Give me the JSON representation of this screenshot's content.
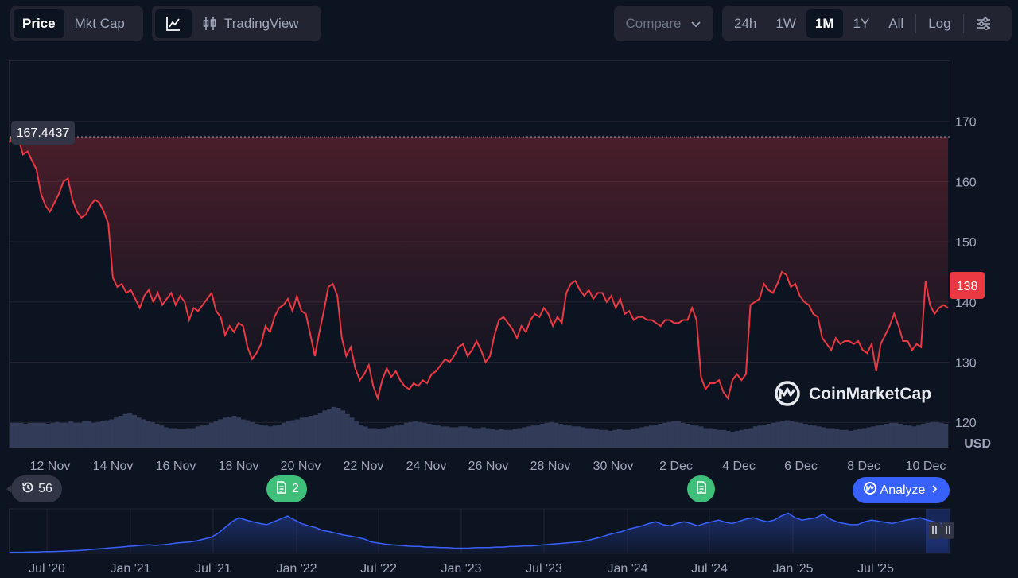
{
  "toolbar": {
    "type_tabs": [
      {
        "label": "Price",
        "active": true
      },
      {
        "label": "Mkt Cap",
        "active": false
      }
    ],
    "style_tabs": [
      {
        "icon": "line-chart-icon",
        "active": true
      },
      {
        "label": "TradingView",
        "icon": "candlestick-icon",
        "active": false
      }
    ],
    "compare_label": "Compare",
    "range_tabs": [
      {
        "label": "24h",
        "active": false
      },
      {
        "label": "1W",
        "active": false
      },
      {
        "label": "1M",
        "active": true
      },
      {
        "label": "1Y",
        "active": false
      },
      {
        "label": "All",
        "active": false
      }
    ],
    "log_label": "Log",
    "settings_icon": "sliders-icon"
  },
  "colors": {
    "background": "#0d1421",
    "line_down": "#ea3943",
    "line_up": "#16c784",
    "volume": "#323b57",
    "navigator_line": "#3861fb",
    "accent": "#3861fb",
    "news": "#3ec07b"
  },
  "chart_data": {
    "type": "line",
    "currency_label": "USD",
    "y_ticks": [
      120,
      130,
      140,
      150,
      160,
      170
    ],
    "ylim": [
      115.8,
      180
    ],
    "x_ticks": [
      "12 Nov",
      "14 Nov",
      "16 Nov",
      "18 Nov",
      "20 Nov",
      "22 Nov",
      "24 Nov",
      "26 Nov",
      "28 Nov",
      "30 Nov",
      "2 Dec",
      "4 Dec",
      "6 Dec",
      "8 Dec",
      "10 Dec"
    ],
    "start_reference_price": "167.4437",
    "current_price": "138",
    "series": [
      {
        "values": [
          166.5,
          168.5,
          167,
          164.5,
          165,
          163.5,
          162,
          158,
          156,
          155,
          156.5,
          158,
          160,
          160.5,
          157,
          155,
          154,
          154.5,
          156,
          157,
          156.5,
          155,
          153,
          144,
          142.5,
          143,
          141.5,
          142,
          140.5,
          139,
          141,
          142,
          140,
          141.5,
          139.5,
          140.5,
          141.5,
          139.5,
          141,
          140,
          137,
          139,
          138.5,
          139.5,
          140.5,
          141.5,
          138.5,
          137.5,
          134.5,
          136,
          135,
          136.5,
          136,
          132.5,
          130.5,
          131.5,
          133,
          136,
          135,
          137.5,
          139,
          139.5,
          140.5,
          138.5,
          141,
          138.5,
          138,
          134.5,
          131,
          135,
          138.5,
          142.5,
          143,
          141,
          134,
          131,
          132.5,
          129,
          127,
          128,
          129.5,
          126,
          124,
          127,
          129,
          127.5,
          128.5,
          127,
          126,
          125.5,
          126.5,
          126,
          127,
          126.5,
          128,
          128.5,
          129.5,
          130.5,
          130,
          131,
          132.5,
          133,
          131,
          132,
          133.5,
          132,
          130,
          131,
          134.5,
          137,
          137.5,
          136.5,
          135.5,
          134,
          136,
          135,
          137,
          138,
          137.5,
          139,
          138,
          136,
          137.5,
          136.5,
          141.5,
          143,
          143.5,
          142,
          141,
          142,
          140.5,
          141.5,
          141.5,
          140,
          141,
          139,
          140.5,
          138,
          138.5,
          137,
          137.5,
          137.5,
          137,
          137,
          136.5,
          136,
          137,
          137,
          136.5,
          136.5,
          137,
          137,
          139,
          137,
          127.5,
          125.5,
          126.5,
          126.5,
          127,
          125,
          124,
          127,
          128,
          127,
          128,
          139.5,
          140,
          140.5,
          143,
          142,
          141.5,
          143,
          145,
          144.5,
          142.5,
          143,
          141,
          140,
          139.5,
          138,
          137.5,
          134,
          133,
          132,
          134,
          133,
          133.5,
          133.5,
          133,
          133.5,
          132,
          131.5,
          133,
          128.5,
          133,
          134.5,
          136,
          138,
          136,
          133.5,
          133.5,
          132,
          133,
          132.5,
          143.5,
          139.5,
          138,
          139,
          139.5,
          139
        ]
      }
    ],
    "volume": [
      14,
      14,
      14,
      13.5,
      14,
      14,
      14,
      14,
      13.5,
      14,
      14.5,
      14,
      14,
      15,
      14,
      14,
      15,
      15,
      14,
      14.5,
      15,
      15.5,
      16,
      17,
      18,
      19,
      19.5,
      18.5,
      17,
      16,
      15,
      14.5,
      13.5,
      12.5,
      11.5,
      11,
      11,
      10.5,
      10.5,
      11,
      11,
      12,
      12.5,
      13,
      14,
      15,
      16,
      17,
      17.5,
      18,
      17,
      16,
      15.5,
      14.5,
      13.5,
      13,
      12.5,
      12,
      12.5,
      13,
      14,
      15,
      15.5,
      16,
      17,
      17.5,
      18,
      18.5,
      19.5,
      21,
      22,
      23,
      22.5,
      21,
      19,
      17,
      15,
      13,
      12,
      11,
      11,
      10.5,
      11,
      11.5,
      12,
      12.5,
      13,
      14,
      14.5,
      15,
      14.5,
      14,
      13.5,
      13,
      12.5,
      12,
      12,
      11.5,
      11.5,
      12,
      12,
      11.5,
      11,
      11,
      11.5,
      11,
      10.5,
      10,
      10.5,
      10,
      10,
      10.5,
      11,
      11.5,
      12,
      12.5,
      13,
      13.5,
      14,
      14.5,
      14,
      13.5,
      13,
      12.5,
      12,
      12,
      11.5,
      11,
      11,
      10.5,
      10,
      10,
      9.5,
      10,
      10.5,
      10,
      10,
      10.5,
      11,
      11.5,
      12,
      12.5,
      13,
      13.5,
      14,
      14.5,
      15,
      15,
      14,
      13.5,
      13,
      12.5,
      12,
      11,
      11,
      10.5,
      10,
      10,
      9.5,
      9,
      9.5,
      10,
      10.5,
      11,
      12,
      12.5,
      13,
      13.5,
      14,
      14.5,
      15,
      15.5,
      15,
      14.5,
      14,
      13.5,
      13,
      12.5,
      12,
      11.5,
      11,
      11,
      10.5,
      10,
      10,
      9.5,
      10,
      10.5,
      11,
      11.5,
      12,
      12.5,
      13,
      13.5,
      14,
      14,
      13.5,
      13,
      12.5,
      12,
      12.5,
      13.5,
      14,
      14.5,
      14.5,
      14,
      13.5
    ],
    "navigator": {
      "x_ticks": [
        "Jul '20",
        "Jan '21",
        "Jul '21",
        "Jan '22",
        "Jul '22",
        "Jan '23",
        "Jul '23",
        "Jan '24",
        "Jul '24",
        "Jan '25",
        "Jul '25"
      ],
      "values": [
        2,
        2,
        2,
        2.5,
        2.5,
        3,
        3,
        3.5,
        4,
        4.5,
        5,
        6,
        7,
        8,
        9,
        10,
        11,
        12,
        13,
        14,
        15,
        14,
        15,
        16,
        18,
        19,
        20,
        22,
        25,
        28,
        35,
        45,
        55,
        62,
        58,
        55,
        52,
        50,
        55,
        60,
        65,
        58,
        52,
        48,
        45,
        40,
        38,
        35,
        32,
        30,
        28,
        25,
        20,
        18,
        16,
        15,
        14,
        13,
        12,
        12,
        11,
        11,
        10,
        10,
        9,
        9,
        9,
        10,
        10,
        10,
        11,
        11,
        12,
        12,
        13,
        13,
        14,
        15,
        16,
        17,
        18,
        19,
        20,
        22,
        25,
        28,
        32,
        35,
        38,
        42,
        45,
        48,
        52,
        55,
        50,
        48,
        52,
        55,
        52,
        48,
        52,
        55,
        58,
        54,
        52,
        56,
        60,
        62,
        58,
        55,
        58,
        65,
        70,
        62,
        58,
        60,
        62,
        68,
        60,
        55,
        52,
        50,
        50,
        55,
        58,
        56,
        54,
        52,
        55,
        58,
        60,
        62,
        58,
        55,
        52,
        48
      ]
    }
  },
  "markers": {
    "history_count": "56",
    "news_count": "2",
    "analyze_label": "Analyze"
  },
  "brand": {
    "name": "CoinMarketCap"
  }
}
